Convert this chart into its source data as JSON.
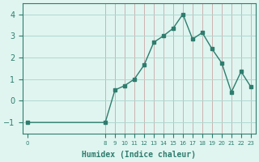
{
  "xlabel": "Humidex (Indice chaleur)",
  "x": [
    0,
    8,
    9,
    10,
    11,
    12,
    13,
    14,
    15,
    16,
    17,
    18,
    19,
    20,
    21,
    22,
    23
  ],
  "y": [
    -1,
    -1,
    0.5,
    0.7,
    1.0,
    1.65,
    2.7,
    3.0,
    3.35,
    4.0,
    2.85,
    3.15,
    2.4,
    1.75,
    0.4,
    1.35,
    0.65
  ],
  "line_color": "#2e7d6e",
  "marker_color": "#2e7d6e",
  "bg_color": "#e0f5f0",
  "grid_color_h": "#b0d8d0",
  "grid_color_v": "#c9a8a8",
  "axis_color": "#2e7d6e",
  "tick_color": "#2e7d6e",
  "label_color": "#2e7d6e",
  "ylim": [
    -1.5,
    4.5
  ],
  "yticks": [
    -1,
    0,
    1,
    2,
    3,
    4
  ],
  "xtick_positions": [
    0,
    8,
    9,
    10,
    11,
    12,
    13,
    14,
    15,
    16,
    17,
    18,
    19,
    20,
    21,
    22,
    23
  ],
  "xtick_labels": [
    "0",
    "8",
    "9",
    "10",
    "11",
    "12",
    "13",
    "14",
    "15",
    "16",
    "17",
    "18",
    "19",
    "20",
    "21",
    "22",
    "23"
  ]
}
